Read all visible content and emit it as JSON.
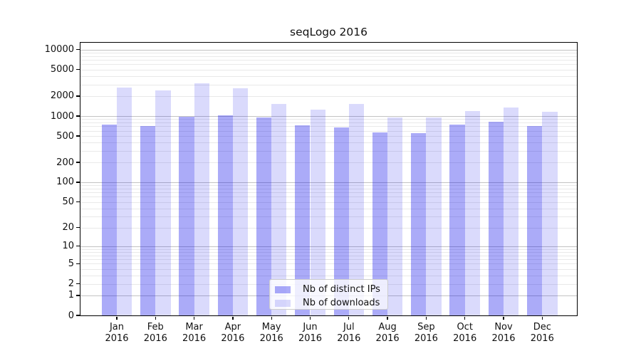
{
  "chart_data": {
    "type": "bar",
    "title": "seqLogo 2016",
    "categories": [
      "Jan 2016",
      "Feb 2016",
      "Mar 2016",
      "Apr 2016",
      "May 2016",
      "Jun 2016",
      "Jul 2016",
      "Aug 2016",
      "Sep 2016",
      "Oct 2016",
      "Nov 2016",
      "Dec 2016"
    ],
    "series": [
      {
        "name": "Nb of distinct IPs",
        "values": [
          740,
          700,
          985,
          1015,
          945,
          720,
          675,
          565,
          550,
          745,
          830,
          700
        ]
      },
      {
        "name": "Nb of downloads",
        "values": [
          2710,
          2460,
          3120,
          2610,
          1540,
          1250,
          1520,
          955,
          945,
          1190,
          1330,
          1150
        ]
      }
    ],
    "xlabel": "",
    "ylabel": "",
    "yscale": "log1p",
    "ytick_values": [
      10000,
      5000,
      2000,
      1000,
      500,
      200,
      100,
      50,
      20,
      10,
      5,
      2,
      1,
      0
    ],
    "ytick_labels": [
      "10000",
      "5000",
      "2000",
      "1000",
      "500",
      "200",
      "100",
      "50",
      "20",
      "10",
      "5",
      "2",
      "1",
      "0"
    ],
    "ylim": [
      0,
      12700
    ],
    "grid": true,
    "legend_position": "lower center (inside plot)"
  },
  "colors": {
    "ips_fill": "rgba(10,10,235,0.34)",
    "downloads_fill": "rgba(10,10,235,0.15)",
    "major_grid": "#c3c3c3",
    "minor_grid": "#e9e9e9",
    "axis": "#000000",
    "text": "#111111"
  }
}
